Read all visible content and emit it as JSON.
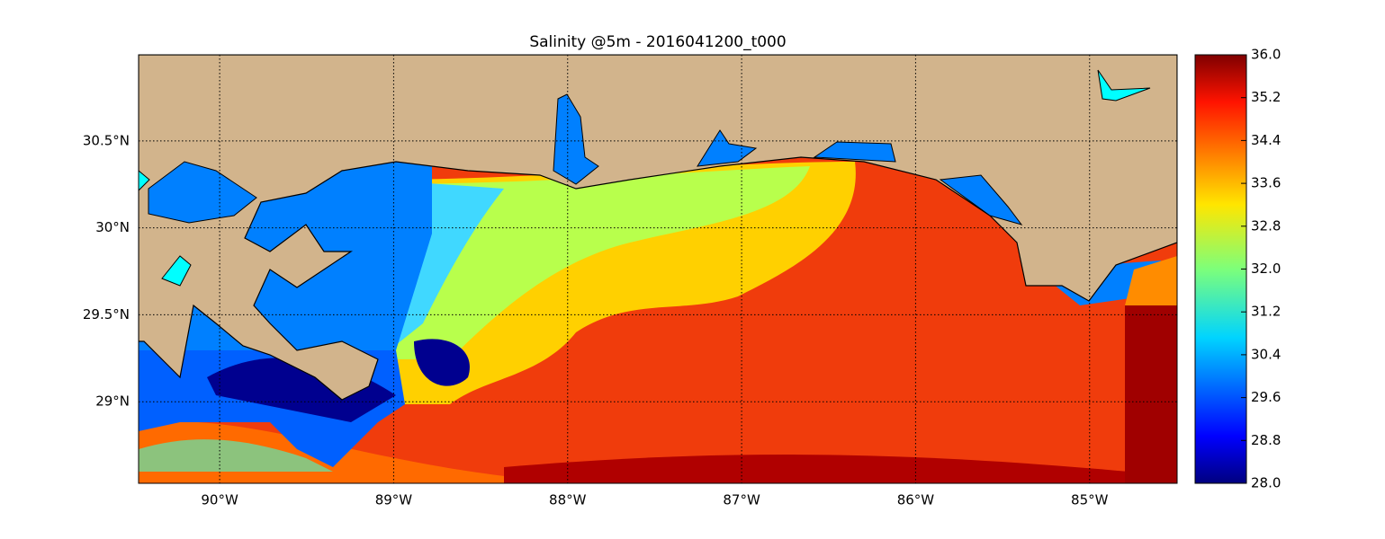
{
  "chart_data": {
    "type": "map",
    "title": "Salinity @5m - 2016041200_t000",
    "xlim": [
      -90.466,
      -84.497
    ],
    "xticks": [
      {
        "value": -90,
        "label": "90°W"
      },
      {
        "value": -89,
        "label": "89°W"
      },
      {
        "value": -88,
        "label": "88°W"
      },
      {
        "value": -87,
        "label": "87°W"
      },
      {
        "value": -86,
        "label": "86°W"
      },
      {
        "value": -85,
        "label": "85°W"
      }
    ],
    "ylim": [
      28.531,
      30.995
    ],
    "yticks": [
      {
        "value": 29,
        "label": "29°N"
      },
      {
        "value": 29.5,
        "label": "29.5°N"
      },
      {
        "value": 30,
        "label": "30°N"
      },
      {
        "value": 30.5,
        "label": "30.5°N"
      }
    ],
    "grid": true,
    "colorbar": {
      "lim": [
        28,
        36
      ],
      "ticks": [
        {
          "value": 28,
          "label": "28.0"
        },
        28.8,
        29.6,
        30.4,
        31.2,
        {
          "value": 32,
          "label": "32.0"
        },
        32.8,
        33.6,
        34.4,
        35.2,
        {
          "value": 36,
          "label": "36.0"
        }
      ]
    }
  }
}
